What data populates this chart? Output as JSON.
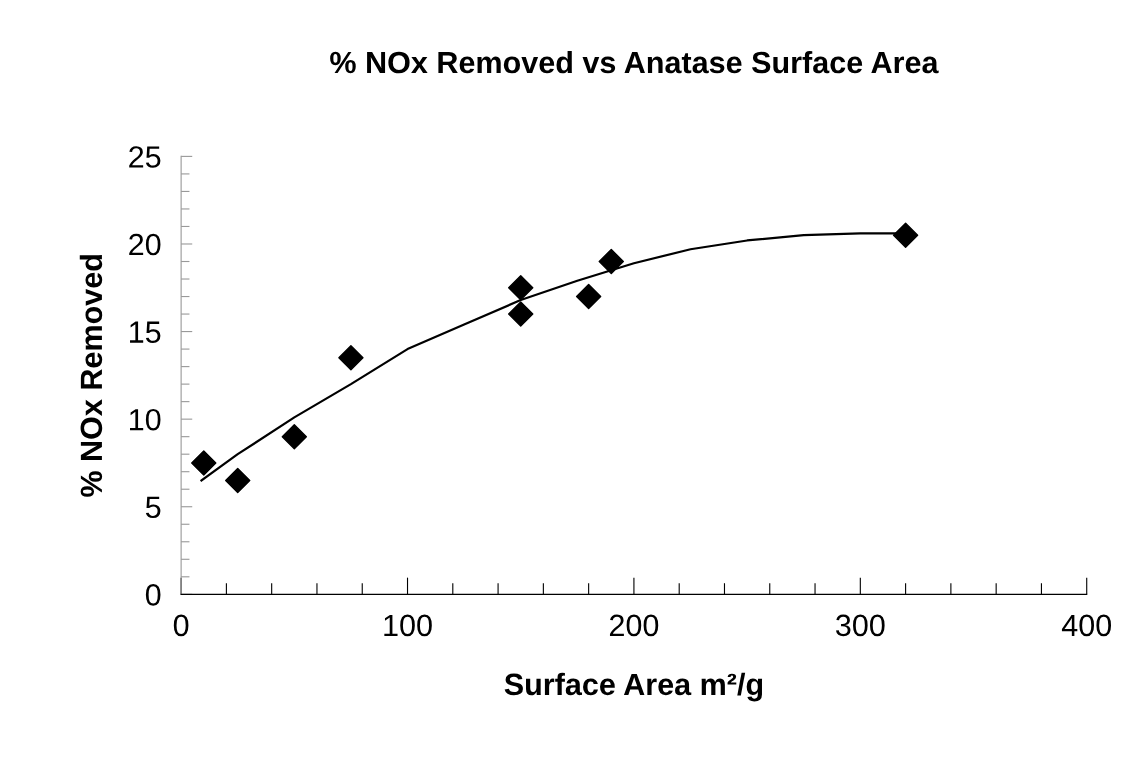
{
  "chart_data": {
    "type": "scatter",
    "title": "% NOx Removed vs Anatase Surface Area",
    "xlabel": "Surface Area m²/g",
    "ylabel": "% NOx Removed",
    "xlim": [
      0,
      400
    ],
    "ylim": [
      0,
      25
    ],
    "xticks": [
      0,
      {
        "value": 20,
        "label": null
      },
      {
        "value": 40,
        "label": null
      },
      {
        "value": 60,
        "label": null
      },
      {
        "value": 80,
        "label": null
      },
      100,
      {
        "value": 120,
        "label": null
      },
      {
        "value": 140,
        "label": null
      },
      {
        "value": 160,
        "label": null
      },
      {
        "value": 180,
        "label": null
      },
      200,
      {
        "value": 220,
        "label": null
      },
      {
        "value": 240,
        "label": null
      },
      {
        "value": 260,
        "label": null
      },
      {
        "value": 280,
        "label": null
      },
      300,
      {
        "value": 320,
        "label": null
      },
      {
        "value": 340,
        "label": null
      },
      {
        "value": 360,
        "label": null
      },
      {
        "value": 380,
        "label": null
      },
      400
    ],
    "yticks": [
      0,
      {
        "value": 1,
        "label": null
      },
      {
        "value": 2,
        "label": null
      },
      {
        "value": 3,
        "label": null
      },
      {
        "value": 4,
        "label": null
      },
      5,
      {
        "value": 6,
        "label": null
      },
      {
        "value": 7,
        "label": null
      },
      {
        "value": 8,
        "label": null
      },
      {
        "value": 9,
        "label": null
      },
      10,
      {
        "value": 11,
        "label": null
      },
      {
        "value": 12,
        "label": null
      },
      {
        "value": 13,
        "label": null
      },
      {
        "value": 14,
        "label": null
      },
      15,
      {
        "value": 16,
        "label": null
      },
      {
        "value": 17,
        "label": null
      },
      {
        "value": 18,
        "label": null
      },
      {
        "value": 19,
        "label": null
      },
      20,
      {
        "value": 21,
        "label": null
      },
      {
        "value": 22,
        "label": null
      },
      {
        "value": 23,
        "label": null
      },
      {
        "value": 24,
        "label": null
      },
      25
    ],
    "grid": false,
    "legend": false,
    "series": [
      {
        "color": "#000000",
        "marker": "diamond",
        "x": [
          10,
          25,
          50,
          75,
          150,
          150,
          180,
          190,
          320
        ],
        "values": [
          7.5,
          6.5,
          9.0,
          13.5,
          17.5,
          16.0,
          17.0,
          19.0,
          20.5
        ]
      },
      {
        "type": "line",
        "color": "#000000",
        "marker": "none",
        "line_style": "solid",
        "x": [
          9,
          25,
          50,
          75,
          100,
          125,
          150,
          175,
          200,
          225,
          250,
          275,
          300,
          320
        ],
        "values": [
          6.5,
          8.0,
          10.1,
          12.0,
          14.0,
          15.4,
          16.8,
          17.9,
          18.9,
          19.7,
          20.2,
          20.5,
          20.6,
          20.6
        ]
      }
    ]
  }
}
